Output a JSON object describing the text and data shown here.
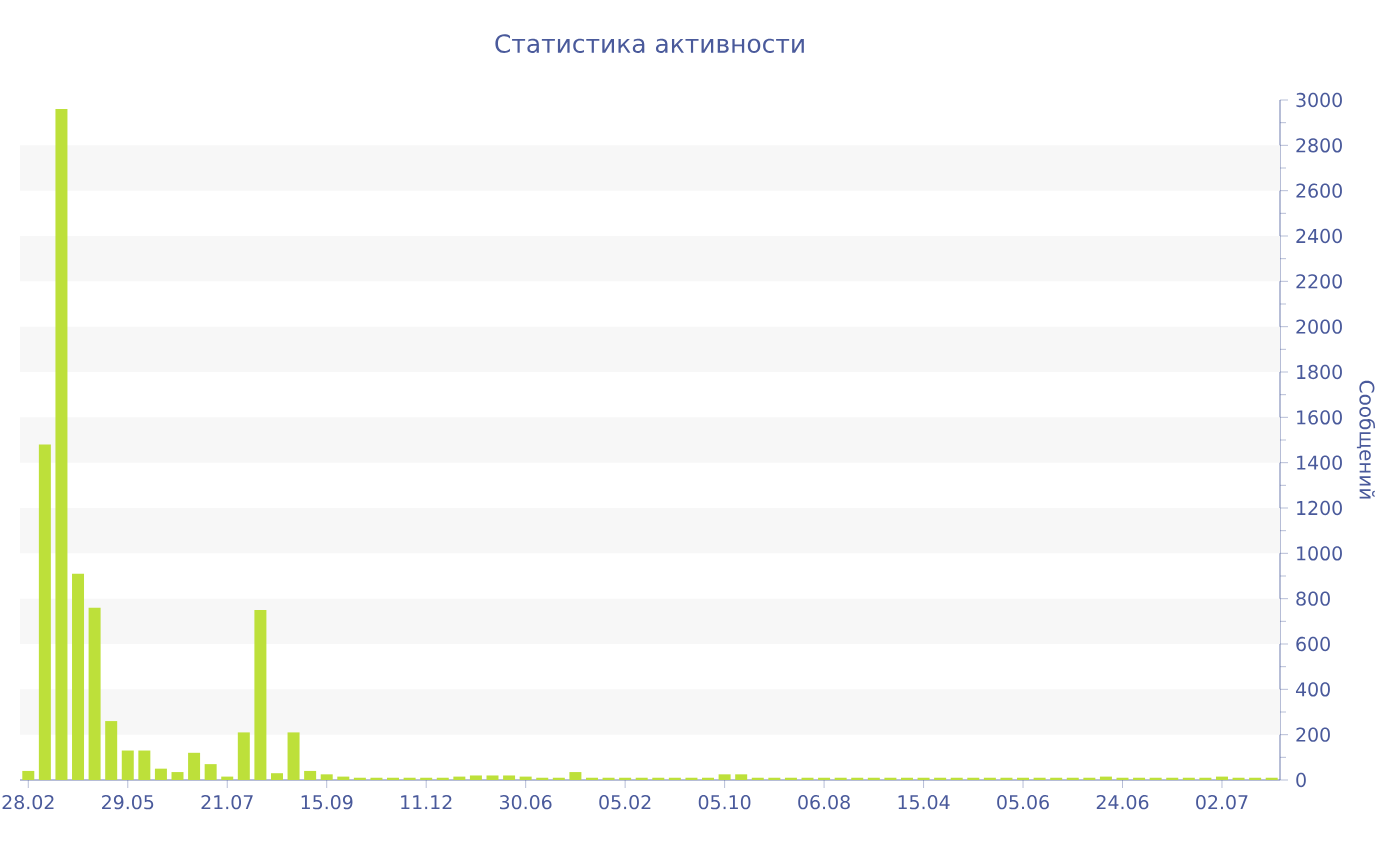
{
  "chart_data": {
    "type": "bar",
    "title": "Статистика активности",
    "ylabel": "Сообщений",
    "categories": [
      "28.02",
      null,
      null,
      null,
      null,
      null,
      "29.05",
      null,
      null,
      null,
      null,
      null,
      "21.07",
      null,
      null,
      null,
      null,
      null,
      "15.09",
      null,
      null,
      null,
      null,
      null,
      "11.12",
      null,
      null,
      null,
      null,
      null,
      "30.06",
      null,
      null,
      null,
      null,
      null,
      "05.02",
      null,
      null,
      null,
      null,
      null,
      "05.10",
      null,
      null,
      null,
      null,
      null,
      "06.08",
      null,
      null,
      null,
      null,
      null,
      "15.04",
      null,
      null,
      null,
      null,
      null,
      "05.06",
      null,
      null,
      null,
      null,
      null,
      "24.06",
      null,
      null,
      null,
      null,
      null,
      "02.07",
      null,
      null,
      null
    ],
    "values": [
      40,
      1480,
      2960,
      910,
      760,
      260,
      130,
      130,
      50,
      35,
      120,
      70,
      15,
      210,
      750,
      30,
      210,
      40,
      25,
      15,
      10,
      10,
      10,
      10,
      10,
      10,
      15,
      20,
      20,
      20,
      15,
      10,
      10,
      35,
      10,
      10,
      10,
      10,
      10,
      10,
      10,
      10,
      25,
      25,
      10,
      10,
      10,
      10,
      10,
      10,
      10,
      10,
      10,
      10,
      10,
      10,
      10,
      10,
      10,
      10,
      10,
      10,
      10,
      10,
      10,
      15,
      10,
      10,
      10,
      10,
      10,
      10,
      15,
      10,
      10,
      10
    ],
    "color": "#bde03a",
    "ylim": [
      0,
      3000
    ],
    "yticks": [
      0,
      200,
      400,
      600,
      800,
      1000,
      1200,
      1400,
      1600,
      1800,
      2000,
      2200,
      2400,
      2600,
      2800,
      3000
    ],
    "bands": [
      {
        "axis": "y",
        "from": 200,
        "to": 400,
        "color": "#f7f7f7"
      },
      {
        "axis": "y",
        "from": 600,
        "to": 800,
        "color": "#f7f7f7"
      },
      {
        "axis": "y",
        "from": 1000,
        "to": 1200,
        "color": "#f7f7f7"
      },
      {
        "axis": "y",
        "from": 1400,
        "to": 1600,
        "color": "#f7f7f7"
      },
      {
        "axis": "y",
        "from": 1800,
        "to": 2000,
        "color": "#f7f7f7"
      },
      {
        "axis": "y",
        "from": 2200,
        "to": 2400,
        "color": "#f7f7f7"
      },
      {
        "axis": "y",
        "from": 2600,
        "to": 2800,
        "color": "#f7f7f7"
      }
    ]
  }
}
